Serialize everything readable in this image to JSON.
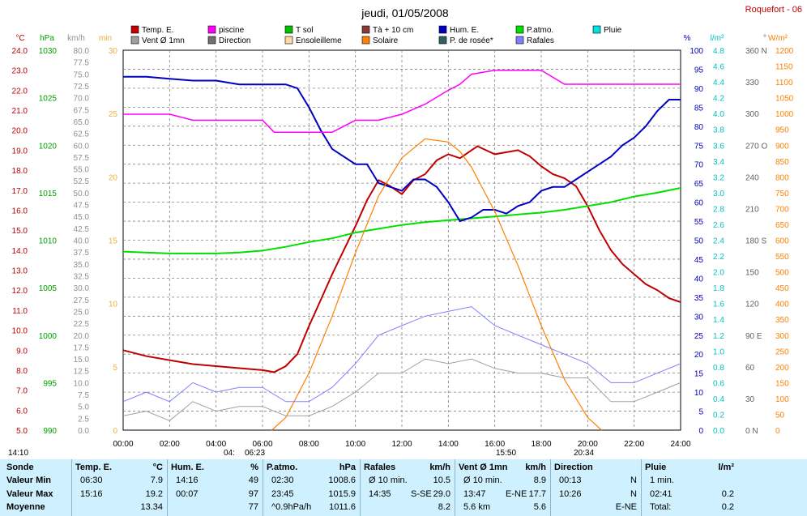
{
  "header": {
    "title": "jeudi, 01/05/2008",
    "site": "Roquefort - 06"
  },
  "legend": [
    {
      "label": "Temp. E.",
      "color": "#c00000"
    },
    {
      "label": "piscine",
      "color": "#ff00ff"
    },
    {
      "label": "T sol",
      "color": "#00c000"
    },
    {
      "label": "Tà + 10 cm",
      "color": "#8b3a3a"
    },
    {
      "label": "Hum. E.",
      "color": "#0000c0"
    },
    {
      "label": "P.atmo.",
      "color": "#00e000"
    },
    {
      "label": "Pluie",
      "color": "#00e0e0"
    },
    {
      "label": "Vent Ø 1mn",
      "color": "#a0a0a0"
    },
    {
      "label": "Direction",
      "color": "#707070"
    },
    {
      "label": "Ensoleilleme",
      "color": "#ffd7a0"
    },
    {
      "label": "Solaire",
      "color": "#ff8000"
    },
    {
      "label": "P. de rosée*",
      "color": "#306060"
    },
    {
      "label": "Rafales",
      "color": "#8080ff"
    }
  ],
  "axis_titles": {
    "temp": "°C",
    "pressure": "hPa",
    "wind": "km/h",
    "min": "min",
    "humidity": "%",
    "rain": "l/m²",
    "direction": "°",
    "solar": "W/m²"
  },
  "markers": {
    "left_time": "14:10",
    "sunrise1": "04:",
    "sunrise2": "06:23",
    "solar_noon": "15:50",
    "sunset": "20:34"
  },
  "chart_data": {
    "type": "line",
    "title": "jeudi, 01/05/2008",
    "x_range": [
      "00:00",
      "24:00"
    ],
    "x_ticks": [
      "00:00",
      "02:00",
      "04:00",
      "06:00",
      "08:00",
      "10:00",
      "12:00",
      "14:00",
      "16:00",
      "18:00",
      "20:00",
      "22:00",
      "24:00"
    ],
    "axes": {
      "temp_c": {
        "range": [
          5.0,
          24.0
        ],
        "ticks": [
          "24.0",
          "23.0",
          "22.0",
          "21.0",
          "20.0",
          "19.0",
          "18.0",
          "17.0",
          "16.0",
          "15.0",
          "14.0",
          "13.0",
          "12.0",
          "11.0",
          "10.0",
          "9.0",
          "8.0",
          "7.0",
          "6.0",
          "5.0"
        ]
      },
      "pressure_hpa": {
        "range": [
          990,
          1030
        ],
        "ticks": [
          "1030",
          "1025",
          "1020",
          "1015",
          "1010",
          "1005",
          "1000",
          "995",
          "990"
        ]
      },
      "wind_kmh": {
        "range": [
          0.0,
          80.0
        ],
        "ticks": [
          "80.0",
          "77.5",
          "75.0",
          "72.5",
          "70.0",
          "67.5",
          "65.0",
          "62.5",
          "60.0",
          "57.5",
          "55.0",
          "52.5",
          "50.0",
          "47.5",
          "45.0",
          "42.5",
          "40.0",
          "37.5",
          "35.0",
          "32.5",
          "30.0",
          "27.5",
          "25.0",
          "22.5",
          "20.0",
          "17.5",
          "15.0",
          "12.5",
          "10.0",
          "7.5",
          "5.0",
          "2.5",
          "0.0"
        ]
      },
      "minutes": {
        "range": [
          0,
          30
        ],
        "ticks": [
          "30",
          "25",
          "20",
          "15",
          "10",
          "5",
          "0"
        ]
      },
      "humidity_pct": {
        "range": [
          0,
          100
        ],
        "ticks": [
          "100",
          "95",
          "90",
          "85",
          "80",
          "75",
          "70",
          "65",
          "60",
          "55",
          "50",
          "45",
          "40",
          "35",
          "30",
          "25",
          "20",
          "15",
          "10",
          "5",
          "0"
        ]
      },
      "rain_lm2": {
        "range": [
          0.0,
          4.8
        ],
        "ticks": [
          "4.8",
          "4.6",
          "4.4",
          "4.2",
          "4.0",
          "3.8",
          "3.6",
          "3.4",
          "3.2",
          "3.0",
          "2.8",
          "2.6",
          "2.4",
          "2.2",
          "2.0",
          "1.8",
          "1.6",
          "1.4",
          "1.2",
          "1.0",
          "0.8",
          "0.6",
          "0.4",
          "0.2",
          "0.0"
        ]
      },
      "direction_deg": {
        "range": [
          0,
          360
        ],
        "ticks": [
          "360 N",
          "330",
          "300",
          "270 O",
          "240",
          "210",
          "180 S",
          "150",
          "120",
          "90 E",
          "60",
          "30",
          "0 N"
        ]
      },
      "solar_wm2": {
        "range": [
          0,
          1200
        ],
        "ticks": [
          "1200",
          "1150",
          "1100",
          "1050",
          "1000",
          "950",
          "900",
          "850",
          "800",
          "750",
          "700",
          "650",
          "600",
          "550",
          "500",
          "450",
          "400",
          "350",
          "300",
          "250",
          "200",
          "150",
          "100",
          "50",
          "0"
        ]
      }
    },
    "series": [
      {
        "name": "Temp. E.",
        "unit": "°C",
        "x": [
          0,
          1,
          2,
          3,
          4,
          5,
          6,
          6.5,
          7,
          7.5,
          8,
          8.5,
          9,
          9.5,
          10,
          10.5,
          11,
          11.5,
          12,
          12.5,
          13,
          13.5,
          14,
          14.5,
          15,
          15.25,
          16,
          16.5,
          17,
          17.5,
          18,
          18.5,
          19,
          19.5,
          20,
          20.5,
          21,
          21.5,
          22,
          22.5,
          23,
          23.5,
          24
        ],
        "y": [
          9.0,
          8.7,
          8.5,
          8.3,
          8.2,
          8.1,
          8.0,
          7.9,
          8.2,
          8.8,
          10.2,
          11.5,
          12.8,
          14.0,
          15.2,
          16.5,
          17.5,
          17.2,
          16.8,
          17.5,
          17.8,
          18.5,
          18.8,
          18.6,
          19.0,
          19.2,
          18.8,
          18.9,
          19.0,
          18.7,
          18.2,
          17.8,
          17.6,
          17.2,
          16.2,
          15.0,
          14.0,
          13.3,
          12.8,
          12.3,
          12.0,
          11.6,
          11.4
        ]
      },
      {
        "name": "P.atmo.",
        "unit": "hPa",
        "x": [
          0,
          1,
          2,
          3,
          4,
          5,
          6,
          7,
          8,
          9,
          10,
          11,
          12,
          13,
          14,
          15,
          16,
          17,
          18,
          19,
          20,
          21,
          22,
          23,
          24
        ],
        "y": [
          1008.8,
          1008.7,
          1008.6,
          1008.6,
          1008.6,
          1008.7,
          1008.9,
          1009.3,
          1009.8,
          1010.2,
          1010.8,
          1011.2,
          1011.6,
          1011.9,
          1012.1,
          1012.3,
          1012.5,
          1012.7,
          1012.9,
          1013.2,
          1013.6,
          1014.0,
          1014.6,
          1015.0,
          1015.5
        ]
      },
      {
        "name": "Hum. E.",
        "unit": "%",
        "x": [
          0,
          1,
          2,
          3,
          4,
          5,
          6,
          7,
          7.5,
          8,
          8.5,
          9,
          9.5,
          10,
          10.5,
          11,
          11.5,
          12,
          12.5,
          13,
          13.5,
          14,
          14.5,
          15,
          15.5,
          16,
          16.5,
          17,
          17.5,
          18,
          18.5,
          19,
          19.5,
          20,
          20.5,
          21,
          21.5,
          22,
          22.5,
          23,
          23.5,
          24
        ],
        "y": [
          93,
          93,
          92.5,
          92,
          92,
          91,
          91,
          91,
          90,
          85,
          79,
          74,
          72,
          70,
          70,
          65,
          64,
          63,
          66,
          66,
          64,
          60,
          55,
          56,
          58,
          58,
          57,
          59,
          60,
          63,
          64,
          64,
          66,
          68,
          70,
          72,
          75,
          77,
          80,
          84,
          87,
          87
        ]
      },
      {
        "name": "piscine",
        "unit": "°C",
        "x": [
          0,
          2,
          3,
          4,
          5,
          6,
          6.5,
          7,
          8,
          9,
          10,
          11,
          12,
          13,
          14,
          14.5,
          15,
          16,
          17,
          18,
          19,
          20,
          21,
          22,
          23,
          24
        ],
        "y": [
          20.8,
          20.8,
          20.5,
          20.5,
          20.5,
          20.5,
          19.9,
          19.9,
          19.9,
          19.9,
          20.5,
          20.5,
          20.8,
          21.3,
          22.0,
          22.3,
          22.8,
          23.0,
          23.0,
          23.0,
          22.3,
          22.3,
          22.3,
          22.3,
          22.3,
          22.3
        ]
      },
      {
        "name": "Solaire",
        "unit": "W/m²",
        "x": [
          6.4,
          7,
          8,
          9,
          10,
          11,
          12,
          13,
          14,
          14.5,
          15,
          16,
          17,
          18,
          19,
          20,
          20.6
        ],
        "y": [
          0,
          40,
          180,
          360,
          560,
          740,
          860,
          920,
          910,
          880,
          830,
          690,
          520,
          330,
          160,
          40,
          0
        ]
      },
      {
        "name": "Vent Ø 1mn",
        "unit": "km/h",
        "x": [
          0,
          1,
          2,
          3,
          4,
          5,
          6,
          7,
          8,
          9,
          10,
          11,
          12,
          13,
          14,
          15,
          16,
          17,
          18,
          19,
          20,
          21,
          22,
          23,
          24
        ],
        "y": [
          3,
          4,
          2,
          6,
          4,
          5,
          5,
          3,
          3,
          5,
          8,
          12,
          12,
          15,
          14,
          15,
          13,
          12,
          12,
          11,
          11,
          6,
          6,
          8,
          10
        ]
      },
      {
        "name": "Rafales",
        "unit": "km/h",
        "x": [
          0,
          1,
          2,
          3,
          4,
          5,
          6,
          7,
          8,
          9,
          10,
          11,
          12,
          13,
          14,
          15,
          16,
          17,
          18,
          19,
          20,
          21,
          22,
          23,
          24
        ],
        "y": [
          6,
          8,
          6,
          10,
          8,
          9,
          9,
          6,
          6,
          9,
          14,
          20,
          22,
          24,
          25,
          26,
          22,
          20,
          18,
          16,
          14,
          10,
          10,
          12,
          14
        ]
      }
    ]
  },
  "stats": {
    "columns": [
      {
        "header": "Sonde",
        "unit": "",
        "rows": [
          "Valeur Min",
          "Valeur Max",
          "Moyenne"
        ],
        "values": [
          "",
          "",
          ""
        ]
      },
      {
        "header": "Temp. E.",
        "unit": "°C",
        "rows": [
          "06:30",
          "15:16",
          ""
        ],
        "values": [
          "7.9",
          "19.2",
          "13.34"
        ]
      },
      {
        "header": "Hum. E.",
        "unit": "%",
        "rows": [
          "14:16",
          "00:07",
          ""
        ],
        "values": [
          "49",
          "97",
          "77"
        ]
      },
      {
        "header": "P.atmo.",
        "unit": "hPa",
        "rows": [
          "02:30",
          "23:45",
          "^0.9hPa/h"
        ],
        "values": [
          "1008.6",
          "1015.9",
          "1011.6"
        ]
      },
      {
        "header": "Rafales",
        "unit": "km/h",
        "rows": [
          "Ø 10 min.",
          "14:35",
          ""
        ],
        "extra": [
          "",
          "S-SE",
          ""
        ],
        "values": [
          "10.5",
          "29.0",
          "8.2"
        ]
      },
      {
        "header": "Vent Ø 1mn",
        "unit": "km/h",
        "rows": [
          "Ø 10 min.",
          "13:47",
          "5.6 km"
        ],
        "extra": [
          "",
          "E-NE",
          ""
        ],
        "values": [
          "8.9",
          "17.7",
          "5.6"
        ]
      },
      {
        "header": "Direction",
        "unit": "",
        "rows": [
          "00:13",
          "10:26",
          ""
        ],
        "values": [
          "N",
          "N",
          "E-NE"
        ]
      },
      {
        "header": "Pluie",
        "unit": "l/m²",
        "rows": [
          "1 min.",
          "02:41",
          "Total:"
        ],
        "values": [
          "",
          "0.2",
          "0.2"
        ]
      }
    ]
  }
}
